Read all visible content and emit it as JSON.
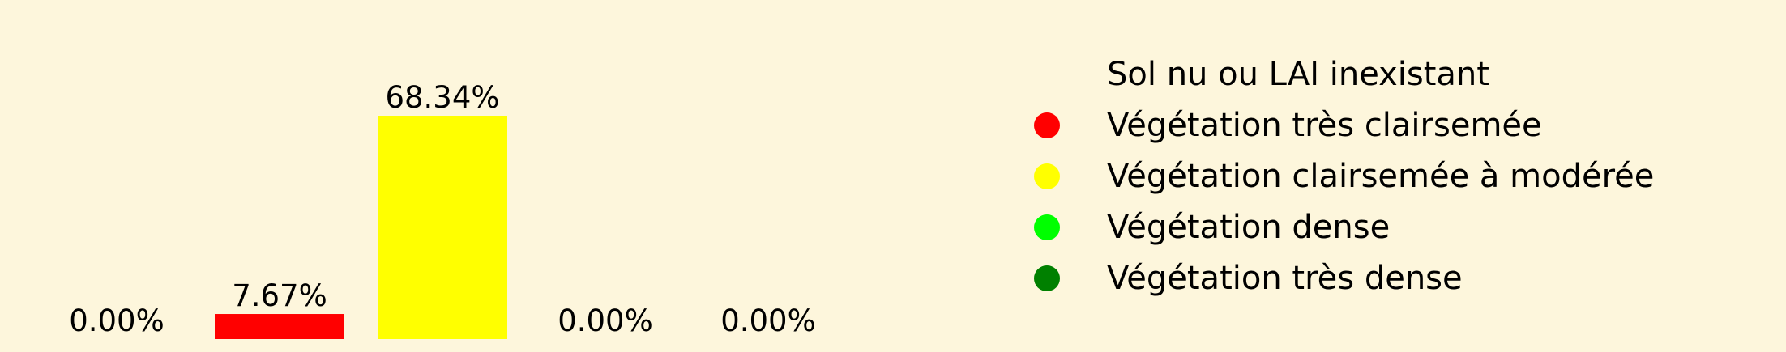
{
  "chart_data": {
    "type": "bar",
    "categories": [
      "Sol nu ou LAI inexistant",
      "Végétation très clairsemée",
      "Végétation clairsemée à modérée",
      "Végétation dense",
      "Végétation très dense"
    ],
    "values": [
      0.0,
      7.67,
      68.34,
      0.0,
      0.0
    ],
    "value_labels": [
      "0.00%",
      "7.67%",
      "68.34%",
      "0.00%",
      "0.00%"
    ],
    "colors": [
      "#fdf6dc",
      "#ff0000",
      "#ffff00",
      "#00ff00",
      "#008000"
    ],
    "ylim": [
      0,
      75
    ],
    "grid": false,
    "legend_position": "right",
    "legend": [
      {
        "label": "Sol nu ou LAI inexistant",
        "color": "#fdf6dc"
      },
      {
        "label": "Végétation très clairsemée",
        "color": "#ff0000"
      },
      {
        "label": "Végétation clairsemée à modérée",
        "color": "#ffff00"
      },
      {
        "label": "Végétation dense",
        "color": "#00ff00"
      },
      {
        "label": "Végétation très dense",
        "color": "#008000"
      }
    ]
  }
}
